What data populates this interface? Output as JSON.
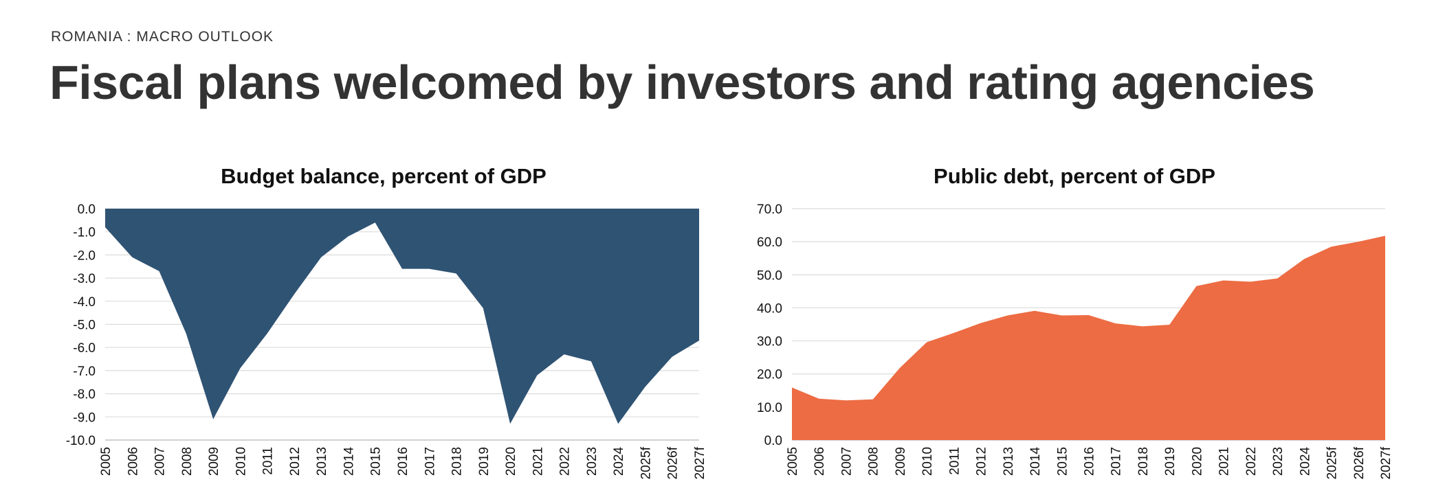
{
  "header": {
    "eyebrow": "ROMANIA : MACRO OUTLOOK",
    "headline": "Fiscal plans welcomed by investors and rating agencies"
  },
  "chart_data": [
    {
      "type": "area",
      "title": "Budget balance, percent of GDP",
      "xlabel": "",
      "ylabel": "",
      "x": [
        "2005",
        "2006",
        "2007",
        "2008",
        "2009",
        "2010",
        "2011",
        "2012",
        "2013",
        "2014",
        "2015",
        "2016",
        "2017",
        "2018",
        "2019",
        "2020",
        "2021",
        "2022",
        "2023",
        "2024",
        "2025f",
        "2026f",
        "2027f"
      ],
      "series": [
        {
          "values": [
            -0.8,
            -2.1,
            -2.7,
            -5.4,
            -9.1,
            -6.9,
            -5.4,
            -3.7,
            -2.1,
            -1.2,
            -0.6,
            -2.6,
            -2.6,
            -2.8,
            -4.3,
            -9.3,
            -7.2,
            -6.3,
            -6.6,
            -9.3,
            -7.7,
            -6.4,
            -5.7
          ],
          "color": "#2f5373"
        }
      ],
      "ylim": [
        -10.0,
        0.0
      ],
      "yticks": [
        "0.0",
        "-1.0",
        "-2.0",
        "-3.0",
        "-4.0",
        "-5.0",
        "-6.0",
        "-7.0",
        "-8.0",
        "-9.0",
        "-10.0"
      ],
      "grid": true
    },
    {
      "type": "area",
      "title": "Public debt, percent of GDP",
      "xlabel": "",
      "ylabel": "",
      "x": [
        "2005",
        "2006",
        "2007",
        "2008",
        "2009",
        "2010",
        "2011",
        "2012",
        "2013",
        "2014",
        "2015",
        "2016",
        "2017",
        "2018",
        "2019",
        "2020",
        "2021",
        "2022",
        "2023",
        "2024",
        "2025f",
        "2026f",
        "2027f"
      ],
      "series": [
        {
          "values": [
            15.9,
            12.5,
            12.0,
            12.3,
            21.8,
            29.6,
            32.4,
            35.4,
            37.7,
            39.1,
            37.7,
            37.8,
            35.3,
            34.4,
            34.9,
            46.6,
            48.3,
            47.9,
            48.9,
            54.8,
            58.5,
            60.0,
            61.8
          ],
          "color": "#ed6c43"
        }
      ],
      "ylim": [
        0.0,
        70.0
      ],
      "yticks": [
        "70.0",
        "60.0",
        "50.0",
        "40.0",
        "30.0",
        "20.0",
        "10.0",
        "0.0"
      ],
      "grid": true
    }
  ]
}
